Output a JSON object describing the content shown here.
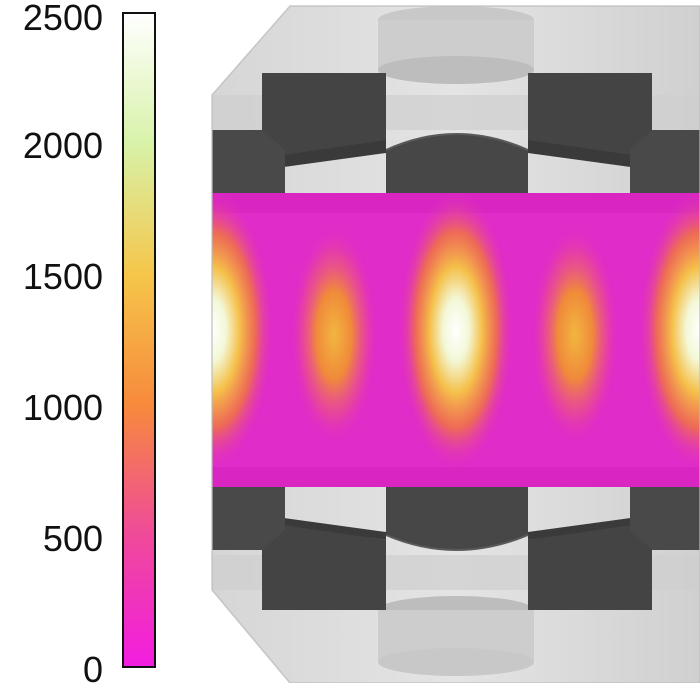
{
  "colorbar": {
    "ticks": [
      "2500",
      "2000",
      "1500",
      "1000",
      "500",
      "0"
    ],
    "gradient_stops": [
      "#ffffff",
      "#d8f2a8",
      "#f5c64a",
      "#f78a3c",
      "#ef4a9a",
      "#f21de0"
    ]
  },
  "scene": {
    "cavity_colors": {
      "low": "#e02cc8",
      "mid": "#f5a030",
      "high": "#ffffff"
    },
    "block_color": "#464646",
    "housing_color": "#d2d2d2"
  }
}
